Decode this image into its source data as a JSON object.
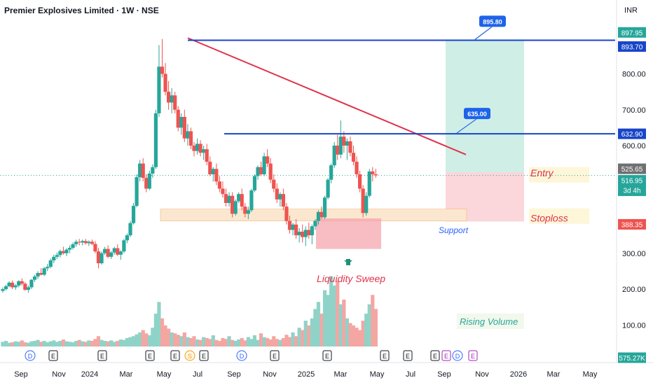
{
  "header": {
    "title": "Premier Explosives Limited · 1W · NSE",
    "currency": "INR"
  },
  "colors": {
    "up": "#26a69a",
    "down": "#ef5350",
    "trendline": "#e0334b",
    "level_line": "#1846c8",
    "target_zone": "#cfeee6",
    "stop_zone": "#fbd6da",
    "support_zone": "#fbe7cf",
    "sweep_zone": "#f5a0aa",
    "arrow": "#1f8f78"
  },
  "chart_data": {
    "type": "candlestick",
    "symbol": "Premier Explosives Limited",
    "interval": "1W",
    "exchange": "NSE",
    "yaxis": {
      "ticks": [
        "800.00",
        "700.00",
        "600.00",
        "300.00",
        "200.00",
        "100.00"
      ],
      "ylim": [
        -100,
        930
      ]
    },
    "xaxis": {
      "tick_labels": [
        "Sep",
        "Nov",
        "2024",
        "Mar",
        "May",
        "Jul",
        "Sep",
        "Nov",
        "2025",
        "Mar",
        "May",
        "Jul",
        "Sep",
        "Nov",
        "2026",
        "Mar",
        "May"
      ]
    },
    "price_labels": [
      {
        "text": "897.95",
        "color": "#26a69a"
      },
      {
        "text": "893.70",
        "color": "#1846c8"
      },
      {
        "text": "632.90",
        "color": "#1846c8"
      },
      {
        "text": "525.65",
        "color": "#707070"
      },
      {
        "text": "516.95",
        "sub": "3d 4h",
        "color": "#26a69a"
      },
      {
        "text": "388.35",
        "color": "#ef5350"
      },
      {
        "text": "575.27K",
        "color": "#26a69a"
      }
    ],
    "levels": [
      {
        "label": "895.80",
        "value": 895.8
      },
      {
        "label": "635.00",
        "value": 635
      }
    ],
    "annotations": {
      "entry": "Entry",
      "stoploss": "Stoploss",
      "support": "Support",
      "liquidity_sweep": "Liquidity Sweep",
      "rising_volume": "Rising Volume"
    },
    "volume_last": "575.27K",
    "event_markers": [
      "D",
      "E",
      "E",
      "E",
      "E",
      "S",
      "E",
      "D",
      "E",
      "E",
      "E",
      "E",
      "E",
      "E",
      "D",
      "E"
    ],
    "ohlc": [
      [
        195,
        205,
        190,
        200
      ],
      [
        200,
        212,
        196,
        208
      ],
      [
        208,
        222,
        205,
        218
      ],
      [
        218,
        224,
        200,
        205
      ],
      [
        205,
        214,
        198,
        210
      ],
      [
        210,
        225,
        205,
        222
      ],
      [
        222,
        230,
        210,
        215
      ],
      [
        215,
        220,
        195,
        198
      ],
      [
        198,
        210,
        190,
        205
      ],
      [
        205,
        228,
        200,
        226
      ],
      [
        226,
        240,
        220,
        235
      ],
      [
        235,
        250,
        228,
        245
      ],
      [
        245,
        258,
        238,
        240
      ],
      [
        240,
        262,
        236,
        258
      ],
      [
        258,
        270,
        250,
        262
      ],
      [
        262,
        285,
        258,
        280
      ],
      [
        280,
        296,
        272,
        290
      ],
      [
        290,
        302,
        284,
        295
      ],
      [
        295,
        310,
        288,
        306
      ],
      [
        306,
        318,
        296,
        300
      ],
      [
        300,
        314,
        292,
        310
      ],
      [
        310,
        322,
        300,
        315
      ],
      [
        315,
        330,
        310,
        325
      ],
      [
        325,
        338,
        318,
        332
      ],
      [
        332,
        340,
        322,
        330
      ],
      [
        330,
        338,
        322,
        334
      ],
      [
        334,
        340,
        324,
        328
      ],
      [
        328,
        336,
        320,
        332
      ],
      [
        332,
        338,
        322,
        326
      ],
      [
        326,
        334,
        300,
        305
      ],
      [
        305,
        315,
        258,
        272
      ],
      [
        272,
        305,
        268,
        300
      ],
      [
        300,
        318,
        295,
        312
      ],
      [
        312,
        322,
        286,
        290
      ],
      [
        290,
        306,
        284,
        302
      ],
      [
        302,
        318,
        296,
        314
      ],
      [
        314,
        325,
        292,
        296
      ],
      [
        296,
        308,
        282,
        305
      ],
      [
        305,
        340,
        300,
        336
      ],
      [
        336,
        355,
        328,
        350
      ],
      [
        350,
        390,
        345,
        384
      ],
      [
        384,
        440,
        380,
        432
      ],
      [
        432,
        520,
        428,
        512
      ],
      [
        512,
        560,
        500,
        550
      ],
      [
        550,
        565,
        500,
        510
      ],
      [
        510,
        520,
        470,
        480
      ],
      [
        480,
        530,
        476,
        522
      ],
      [
        522,
        548,
        510,
        540
      ],
      [
        540,
        700,
        535,
        690
      ],
      [
        690,
        880,
        680,
        820
      ],
      [
        820,
        897,
        790,
        800
      ],
      [
        800,
        830,
        740,
        750
      ],
      [
        750,
        780,
        700,
        720
      ],
      [
        720,
        760,
        690,
        740
      ],
      [
        740,
        750,
        690,
        700
      ],
      [
        700,
        710,
        640,
        650
      ],
      [
        650,
        690,
        630,
        680
      ],
      [
        680,
        700,
        610,
        620
      ],
      [
        620,
        660,
        600,
        640
      ],
      [
        640,
        650,
        590,
        600
      ],
      [
        600,
        610,
        570,
        585
      ],
      [
        585,
        620,
        575,
        605
      ],
      [
        605,
        615,
        570,
        580
      ],
      [
        580,
        600,
        560,
        590
      ],
      [
        590,
        605,
        545,
        555
      ],
      [
        555,
        570,
        515,
        520
      ],
      [
        520,
        540,
        500,
        535
      ],
      [
        535,
        550,
        490,
        500
      ],
      [
        500,
        515,
        470,
        480
      ],
      [
        480,
        500,
        455,
        465
      ],
      [
        465,
        480,
        430,
        440
      ],
      [
        440,
        470,
        430,
        460
      ],
      [
        460,
        470,
        400,
        410
      ],
      [
        410,
        450,
        405,
        445
      ],
      [
        445,
        470,
        440,
        465
      ],
      [
        465,
        480,
        420,
        430
      ],
      [
        430,
        440,
        400,
        410
      ],
      [
        410,
        430,
        395,
        420
      ],
      [
        420,
        480,
        415,
        475
      ],
      [
        475,
        520,
        470,
        515
      ],
      [
        515,
        545,
        505,
        540
      ],
      [
        540,
        555,
        515,
        520
      ],
      [
        520,
        580,
        515,
        570
      ],
      [
        570,
        590,
        540,
        550
      ],
      [
        550,
        565,
        495,
        505
      ],
      [
        505,
        520,
        470,
        480
      ],
      [
        480,
        495,
        440,
        450
      ],
      [
        450,
        470,
        430,
        465
      ],
      [
        465,
        480,
        420,
        430
      ],
      [
        430,
        440,
        380,
        390
      ],
      [
        390,
        405,
        355,
        365
      ],
      [
        365,
        385,
        350,
        380
      ],
      [
        380,
        395,
        340,
        350
      ],
      [
        350,
        370,
        330,
        360
      ],
      [
        360,
        380,
        330,
        345
      ],
      [
        345,
        375,
        320,
        365
      ],
      [
        365,
        385,
        340,
        350
      ],
      [
        350,
        380,
        325,
        375
      ],
      [
        375,
        395,
        365,
        390
      ],
      [
        390,
        420,
        380,
        415
      ],
      [
        415,
        430,
        395,
        400
      ],
      [
        400,
        460,
        395,
        455
      ],
      [
        455,
        510,
        450,
        505
      ],
      [
        505,
        550,
        495,
        545
      ],
      [
        545,
        610,
        538,
        600
      ],
      [
        600,
        630,
        560,
        575
      ],
      [
        575,
        670,
        565,
        625
      ],
      [
        625,
        640,
        580,
        600
      ],
      [
        600,
        620,
        560,
        612
      ],
      [
        612,
        625,
        570,
        580
      ],
      [
        580,
        600,
        545,
        555
      ],
      [
        555,
        570,
        510,
        520
      ],
      [
        520,
        530,
        470,
        480
      ],
      [
        480,
        490,
        400,
        412
      ],
      [
        412,
        470,
        405,
        460
      ],
      [
        460,
        535,
        455,
        528
      ],
      [
        528,
        540,
        500,
        520
      ],
      [
        520,
        535,
        510,
        517
      ]
    ],
    "volume": [
      10,
      12,
      8,
      9,
      11,
      10,
      13,
      9,
      8,
      11,
      12,
      14,
      10,
      12,
      9,
      11,
      13,
      10,
      12,
      15,
      11,
      10,
      9,
      12,
      14,
      11,
      10,
      13,
      12,
      16,
      22,
      14,
      12,
      11,
      13,
      10,
      12,
      15,
      14,
      18,
      20,
      22,
      26,
      30,
      35,
      28,
      24,
      40,
      70,
      95,
      60,
      45,
      38,
      30,
      28,
      25,
      22,
      30,
      20,
      18,
      22,
      15,
      14,
      20,
      18,
      16,
      24,
      14,
      12,
      18,
      16,
      22,
      14,
      12,
      15,
      18,
      13,
      20,
      16,
      24,
      14,
      28,
      20,
      18,
      15,
      22,
      16,
      14,
      18,
      25,
      20,
      30,
      22,
      40,
      35,
      55,
      45,
      60,
      80,
      95,
      70,
      120,
      110,
      150,
      130,
      140,
      90,
      100,
      60,
      50,
      45,
      40,
      35,
      55,
      70,
      90,
      110,
      80,
      60,
      48
    ]
  }
}
